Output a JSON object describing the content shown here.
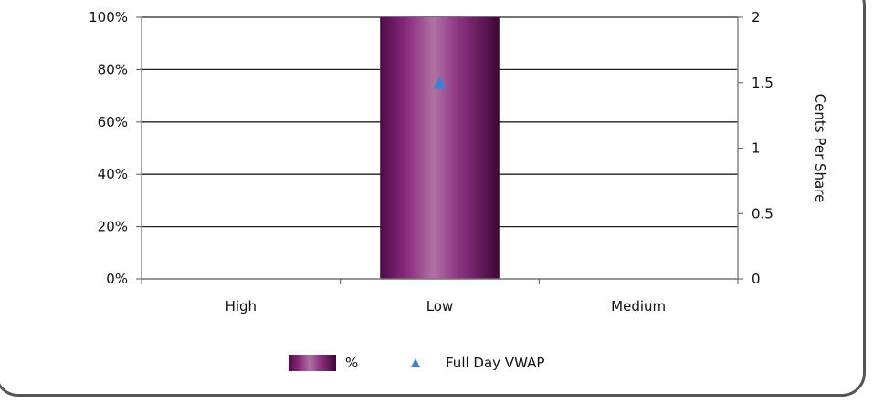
{
  "chart_data": {
    "type": "bar",
    "categories": [
      "High",
      "Low",
      "Medium"
    ],
    "series": [
      {
        "name": "%",
        "type": "bar",
        "axis": "left",
        "values": [
          0,
          100,
          0
        ],
        "color": "#7a1a6e"
      },
      {
        "name": "Full Day VWAP",
        "type": "scatter",
        "marker": "triangle",
        "axis": "right",
        "values": [
          null,
          1.5,
          null
        ],
        "color": "#3f7fd6"
      }
    ],
    "y_left": {
      "ticks": [
        "0%",
        "20%",
        "40%",
        "60%",
        "80%",
        "100%"
      ],
      "ylim": [
        0,
        100
      ]
    },
    "y_right": {
      "label": "Cents Per Share",
      "ticks": [
        "0",
        "0.5",
        "1",
        "1.5",
        "2"
      ],
      "ylim": [
        0,
        2
      ]
    },
    "grid": true,
    "legend_position": "bottom"
  }
}
